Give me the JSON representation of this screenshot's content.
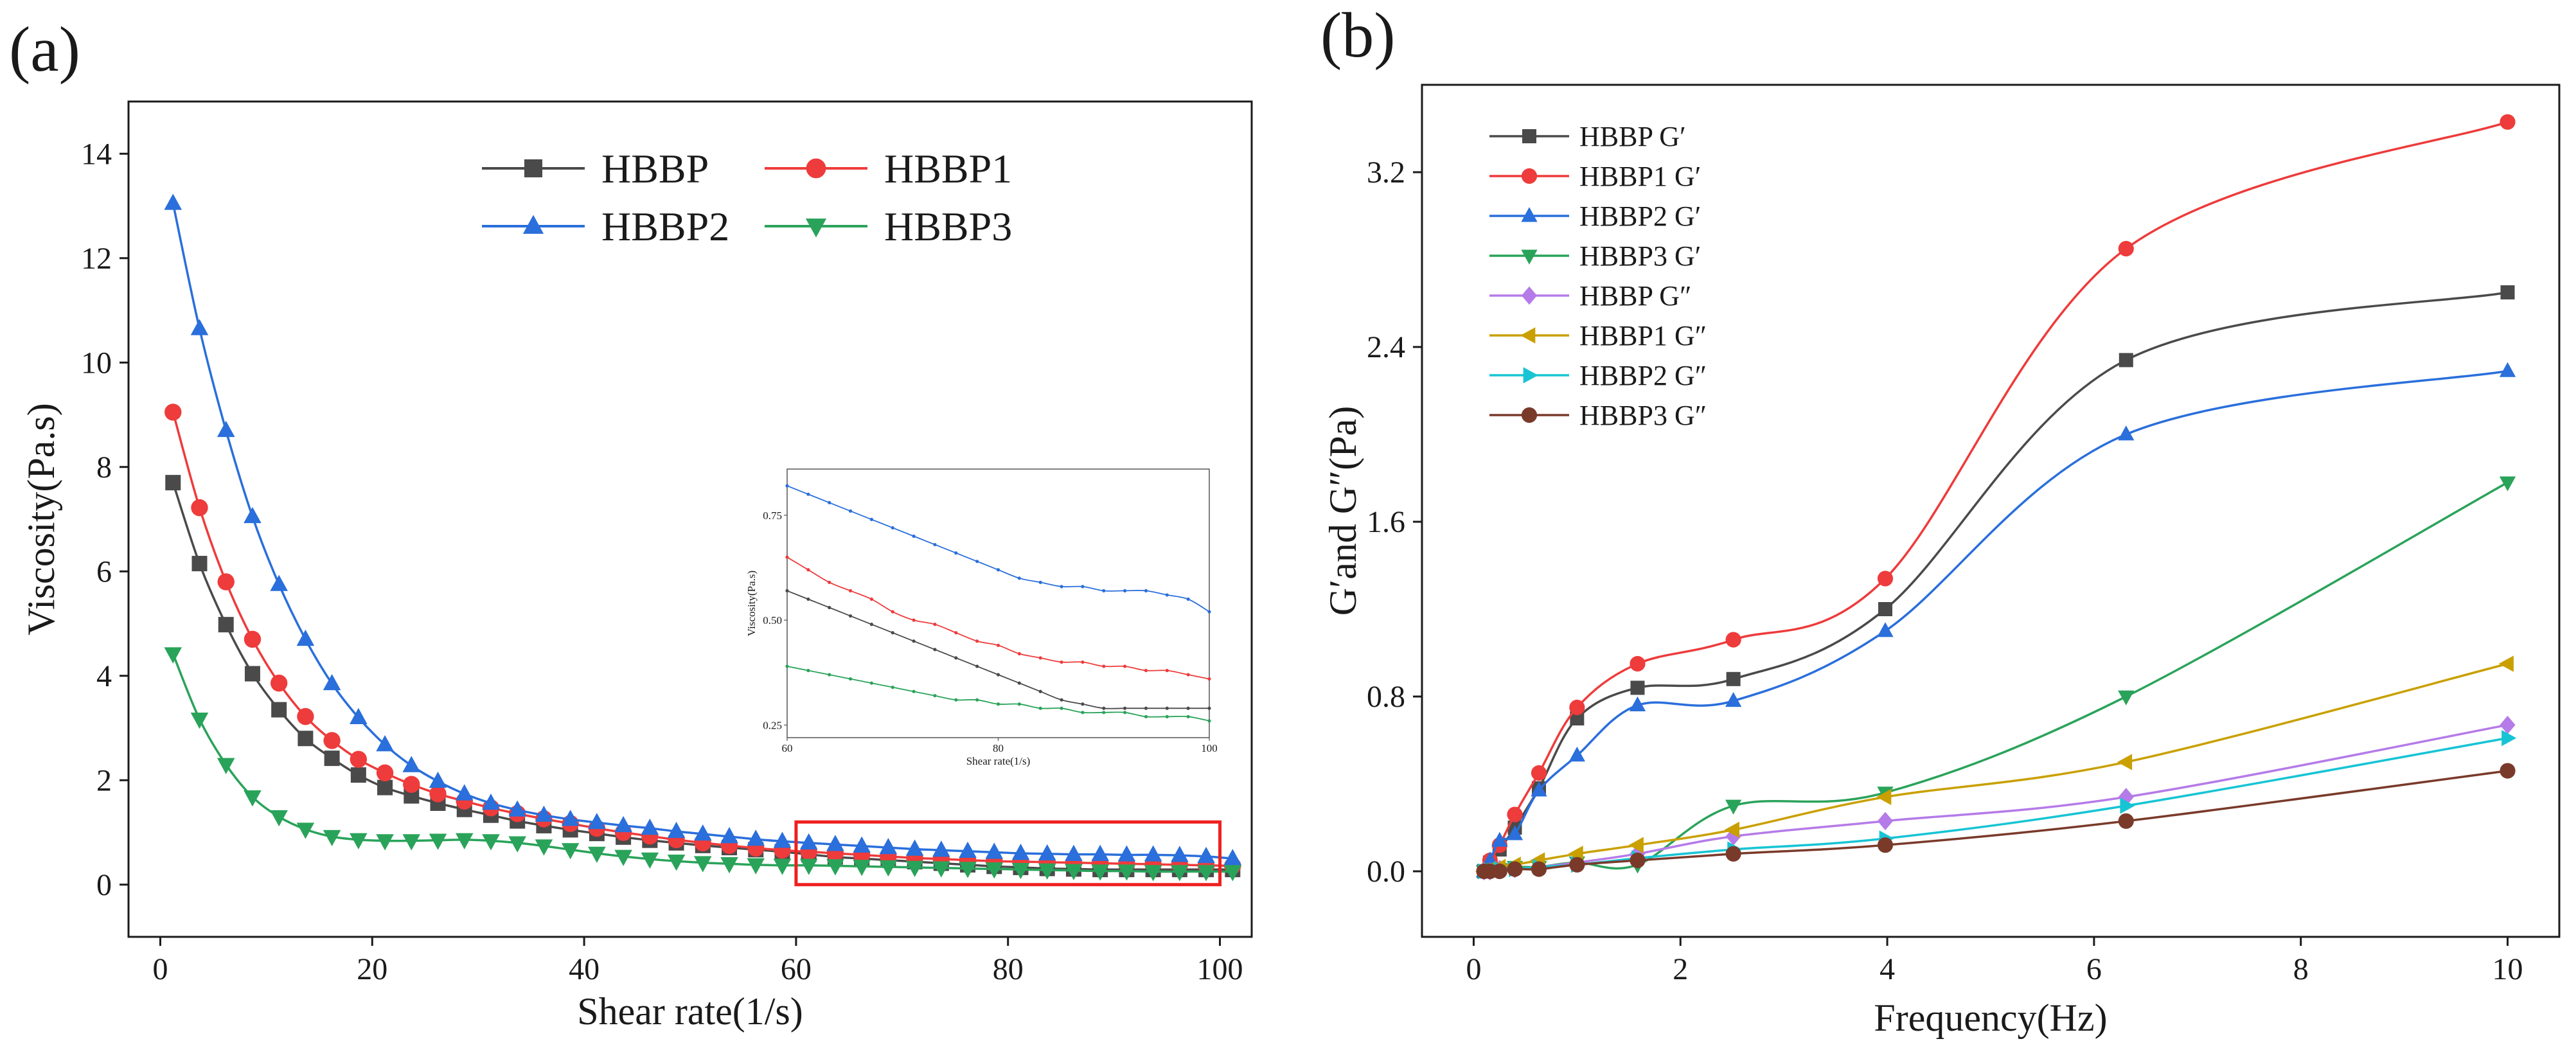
{
  "panels": {
    "a": {
      "letter": "(a)"
    },
    "b": {
      "letter": "(b)"
    }
  },
  "colors": {
    "HBBP": "#4a4a4a",
    "HBBP1": "#ee3b3b",
    "HBBP2": "#2a6fdb",
    "HBBP3": "#2aa35a",
    "HBBP_G2": "#b57be8",
    "HBBP1_G2": "#c9a000",
    "HBBP2_G2": "#17c4d4",
    "HBBP3_G2": "#7a3a2a",
    "highlight_box": "#ee2020"
  },
  "chart_data": [
    {
      "type": "line",
      "panel": "(a)",
      "xlabel": "Shear rate(1/s)",
      "ylabel": "Viscosity(Pa.s)",
      "xlim": [
        -3,
        103
      ],
      "ylim": [
        -1,
        15
      ],
      "xticks": [
        0,
        20,
        40,
        60,
        80,
        100
      ],
      "yticks": [
        0,
        2,
        4,
        6,
        8,
        10,
        12,
        14
      ],
      "legend": "top-right, 2 columns",
      "highlight": {
        "x": [
          60,
          100
        ],
        "y": [
          0,
          1.2
        ]
      },
      "x": [
        1.2,
        3.7,
        6.2,
        8.7,
        11.2,
        13.7,
        16.2,
        18.7,
        21.2,
        23.7,
        26.2,
        28.7,
        31.2,
        33.7,
        36.2,
        38.7,
        41.2,
        43.7,
        46.2,
        48.7,
        51.2,
        53.7,
        56.2,
        58.7,
        61.2,
        63.7,
        66.2,
        68.7,
        71.2,
        73.7,
        76.2,
        78.7,
        81.2,
        83.7,
        86.2,
        88.7,
        91.2,
        93.7,
        96.2,
        98.7,
        101.2
      ],
      "series": [
        {
          "name": "HBBP",
          "marker": "square",
          "values": [
            7.7,
            6.15,
            4.98,
            4.04,
            3.35,
            2.8,
            2.42,
            2.1,
            1.86,
            1.7,
            1.56,
            1.44,
            1.33,
            1.22,
            1.13,
            1.05,
            0.98,
            0.91,
            0.85,
            0.8,
            0.75,
            0.71,
            0.67,
            0.63,
            0.58,
            0.53,
            0.5,
            0.47,
            0.44,
            0.41,
            0.38,
            0.35,
            0.33,
            0.31,
            0.3,
            0.29,
            0.29,
            0.29,
            0.29,
            0.29,
            0.29
          ]
        },
        {
          "name": "HBBP1",
          "marker": "circle",
          "values": [
            9.05,
            7.22,
            5.8,
            4.7,
            3.86,
            3.22,
            2.76,
            2.4,
            2.14,
            1.92,
            1.74,
            1.6,
            1.47,
            1.36,
            1.26,
            1.17,
            1.08,
            1.0,
            0.93,
            0.86,
            0.8,
            0.75,
            0.7,
            0.66,
            0.63,
            0.6,
            0.57,
            0.54,
            0.51,
            0.49,
            0.47,
            0.45,
            0.44,
            0.43,
            0.42,
            0.41,
            0.4,
            0.39,
            0.38,
            0.37,
            0.36
          ]
        },
        {
          "name": "HBBP2",
          "marker": "triangle-up",
          "values": [
            13.05,
            10.65,
            8.7,
            7.05,
            5.75,
            4.7,
            3.85,
            3.2,
            2.68,
            2.28,
            1.98,
            1.74,
            1.56,
            1.43,
            1.33,
            1.25,
            1.19,
            1.13,
            1.08,
            1.02,
            0.97,
            0.92,
            0.87,
            0.83,
            0.8,
            0.77,
            0.74,
            0.71,
            0.68,
            0.66,
            0.64,
            0.62,
            0.6,
            0.59,
            0.58,
            0.58,
            0.57,
            0.57,
            0.56,
            0.54,
            0.5
          ]
        },
        {
          "name": "HBBP3",
          "marker": "triangle-down",
          "values": [
            4.42,
            3.17,
            2.3,
            1.68,
            1.3,
            1.06,
            0.92,
            0.86,
            0.84,
            0.84,
            0.85,
            0.86,
            0.84,
            0.8,
            0.74,
            0.67,
            0.6,
            0.54,
            0.49,
            0.45,
            0.42,
            0.4,
            0.38,
            0.37,
            0.37,
            0.36,
            0.35,
            0.34,
            0.33,
            0.32,
            0.31,
            0.3,
            0.29,
            0.28,
            0.27,
            0.26,
            0.26,
            0.25,
            0.25,
            0.25,
            0.25
          ]
        }
      ],
      "inset": {
        "type": "line",
        "xlabel": "Shear rate(1/s)",
        "ylabel": "Viscosity(Pa.s)",
        "xlim": [
          60,
          100
        ],
        "ylim": [
          0.22,
          0.86
        ],
        "xticks": [
          60,
          80,
          100
        ],
        "yticks": [
          0.25,
          0.5,
          0.75
        ],
        "ytick_labels": [
          "0.25",
          "0.50",
          "0.75"
        ],
        "x": [
          60,
          62,
          64,
          66,
          68,
          70,
          72,
          74,
          76,
          78,
          80,
          82,
          84,
          86,
          88,
          90,
          92,
          94,
          96,
          98,
          100
        ],
        "series": [
          {
            "name": "HBBP",
            "values": [
              0.57,
              0.55,
              0.53,
              0.51,
              0.49,
              0.47,
              0.45,
              0.43,
              0.41,
              0.39,
              0.37,
              0.35,
              0.33,
              0.31,
              0.3,
              0.29,
              0.29,
              0.29,
              0.29,
              0.29,
              0.29
            ]
          },
          {
            "name": "HBBP1",
            "values": [
              0.65,
              0.62,
              0.59,
              0.57,
              0.55,
              0.52,
              0.5,
              0.49,
              0.47,
              0.45,
              0.44,
              0.42,
              0.41,
              0.4,
              0.4,
              0.39,
              0.39,
              0.38,
              0.38,
              0.37,
              0.36
            ]
          },
          {
            "name": "HBBP2",
            "values": [
              0.82,
              0.8,
              0.78,
              0.76,
              0.74,
              0.72,
              0.7,
              0.68,
              0.66,
              0.64,
              0.62,
              0.6,
              0.59,
              0.58,
              0.58,
              0.57,
              0.57,
              0.57,
              0.56,
              0.55,
              0.52
            ]
          },
          {
            "name": "HBBP3",
            "values": [
              0.39,
              0.38,
              0.37,
              0.36,
              0.35,
              0.34,
              0.33,
              0.32,
              0.31,
              0.31,
              0.3,
              0.3,
              0.29,
              0.29,
              0.28,
              0.28,
              0.28,
              0.27,
              0.27,
              0.27,
              0.26
            ]
          }
        ]
      }
    },
    {
      "type": "line",
      "panel": "(b)",
      "xlabel": "Frequency(Hz)",
      "ylabel": "G′and G″(Pa)",
      "xlim": [
        -0.5,
        10.5
      ],
      "ylim": [
        -0.3,
        3.6
      ],
      "xticks": [
        0,
        2,
        4,
        6,
        8,
        10
      ],
      "yticks": [
        0,
        0.8,
        1.6,
        2.4,
        3.2
      ],
      "ytick_labels": [
        "0.0",
        "0.8",
        "1.6",
        "2.4",
        "3.2"
      ],
      "legend": "top-left",
      "x": [
        0.1,
        0.158,
        0.251,
        0.398,
        0.631,
        1.0,
        1.585,
        2.512,
        3.981,
        6.31,
        10.0
      ],
      "series": [
        {
          "name": "HBBP G′",
          "marker": "square",
          "values": [
            0.0,
            0.04,
            0.1,
            0.2,
            0.38,
            0.7,
            0.84,
            0.88,
            1.2,
            2.34,
            2.65
          ]
        },
        {
          "name": "HBBP1 G′",
          "marker": "circle",
          "values": [
            0.0,
            0.05,
            0.12,
            0.26,
            0.45,
            0.75,
            0.95,
            1.06,
            1.34,
            2.85,
            3.43
          ]
        },
        {
          "name": "HBBP2 G′",
          "marker": "triangle-up",
          "values": [
            0.0,
            0.05,
            0.14,
            0.17,
            0.37,
            0.53,
            0.76,
            0.78,
            1.1,
            2.0,
            2.29
          ]
        },
        {
          "name": "HBBP3 G′",
          "marker": "triangle-down",
          "values": [
            0.0,
            0.01,
            0.01,
            0.02,
            0.02,
            0.04,
            0.03,
            0.3,
            0.36,
            0.8,
            1.78
          ]
        },
        {
          "name": "HBBP G″",
          "marker": "diamond",
          "values": [
            0.0,
            0.0,
            0.01,
            0.01,
            0.02,
            0.04,
            0.08,
            0.16,
            0.23,
            0.34,
            0.67
          ]
        },
        {
          "name": "HBBP1 G″",
          "marker": "triangle-left",
          "values": [
            0.0,
            0.01,
            0.02,
            0.03,
            0.05,
            0.08,
            0.12,
            0.19,
            0.34,
            0.5,
            0.95
          ]
        },
        {
          "name": "HBBP2 G″",
          "marker": "triangle-right",
          "values": [
            0.0,
            0.0,
            0.01,
            0.01,
            0.02,
            0.03,
            0.06,
            0.1,
            0.15,
            0.3,
            0.61
          ]
        },
        {
          "name": "HBBP3 G″",
          "marker": "circle",
          "values": [
            0.0,
            0.0,
            0.0,
            0.01,
            0.01,
            0.03,
            0.05,
            0.08,
            0.12,
            0.23,
            0.46
          ]
        }
      ]
    }
  ]
}
